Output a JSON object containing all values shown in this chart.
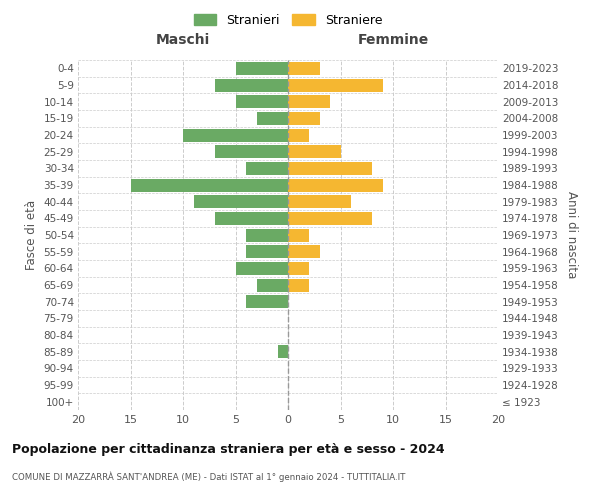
{
  "age_groups": [
    "100+",
    "95-99",
    "90-94",
    "85-89",
    "80-84",
    "75-79",
    "70-74",
    "65-69",
    "60-64",
    "55-59",
    "50-54",
    "45-49",
    "40-44",
    "35-39",
    "30-34",
    "25-29",
    "20-24",
    "15-19",
    "10-14",
    "5-9",
    "0-4"
  ],
  "birth_years": [
    "≤ 1923",
    "1924-1928",
    "1929-1933",
    "1934-1938",
    "1939-1943",
    "1944-1948",
    "1949-1953",
    "1954-1958",
    "1959-1963",
    "1964-1968",
    "1969-1973",
    "1974-1978",
    "1979-1983",
    "1984-1988",
    "1989-1993",
    "1994-1998",
    "1999-2003",
    "2004-2008",
    "2009-2013",
    "2014-2018",
    "2019-2023"
  ],
  "maschi": [
    0,
    0,
    0,
    1,
    0,
    0,
    4,
    3,
    5,
    4,
    4,
    7,
    9,
    15,
    4,
    7,
    10,
    3,
    5,
    7,
    5
  ],
  "femmine": [
    0,
    0,
    0,
    0,
    0,
    0,
    0,
    2,
    2,
    3,
    2,
    8,
    6,
    9,
    8,
    5,
    2,
    3,
    4,
    9,
    3
  ],
  "color_maschi": "#6aaa64",
  "color_femmine": "#f5b731",
  "title": "Popolazione per cittadinanza straniera per età e sesso - 2024",
  "subtitle": "COMUNE DI MAZZARRÀ SANT'ANDREA (ME) - Dati ISTAT al 1° gennaio 2024 - TUTTITALIA.IT",
  "ylabel_left": "Fasce di età",
  "ylabel_right": "Anni di nascita",
  "xlabel_maschi": "Maschi",
  "xlabel_femmine": "Femmine",
  "legend_maschi": "Stranieri",
  "legend_femmine": "Straniere",
  "xlim": 20,
  "background_color": "#ffffff",
  "grid_color": "#cccccc"
}
